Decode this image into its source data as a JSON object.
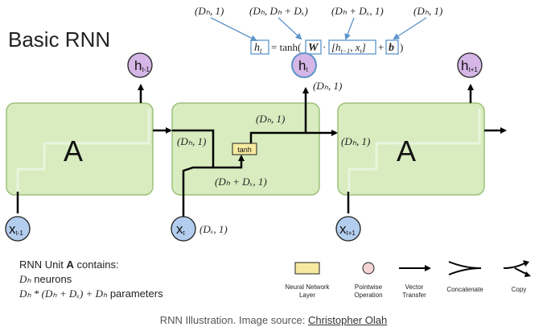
{
  "title": "Basic RNN",
  "equation": {
    "lhs": "h",
    "lhs_sub": "t",
    "eq": "= tanh(",
    "weight": "W",
    "dot": "·",
    "input_open": "[h",
    "input_sub": "t−1",
    "input_rest": ", x",
    "input_sub2": "t",
    "input_close": "]",
    "plus": "+",
    "bias": "b",
    "close": ")",
    "dims": {
      "h": "(Dₕ, 1)",
      "W": "(Dₕ, Dₕ + Dₓ)",
      "input": "(Dₕ + Dₓ, 1)",
      "b": "(Dₕ, 1)"
    }
  },
  "cells": {
    "left_label": "A",
    "right_label": "A",
    "center_layer": "tanh"
  },
  "nodes": {
    "h_prev": {
      "main": "h",
      "sub": "t-1"
    },
    "h_t": {
      "main": "h",
      "sub": "t"
    },
    "h_next": {
      "main": "h",
      "sub": "t+1"
    },
    "x_prev": {
      "main": "x",
      "sub": "t-1"
    },
    "x_t": {
      "main": "x",
      "sub": "t"
    },
    "x_next": {
      "main": "x",
      "sub": "t+1"
    }
  },
  "dim_labels": {
    "h_out": "(Dₕ, 1)",
    "tanh_out": "(Dₕ, 1)",
    "h_in": "(Dₕ, 1)",
    "concat": "(Dₕ + Dₓ, 1)",
    "x_in": "(Dₓ, 1)",
    "right_in": "(Dₕ, 1)"
  },
  "info": {
    "line1_pre": "RNN Unit ",
    "line1_bold": "A",
    "line1_post": " contains:",
    "line2_math": "Dₕ",
    "line2_text": " neurons",
    "line3_math": "Dₕ * (Dₕ + Dₓ) + Dₕ",
    "line3_text": " parameters"
  },
  "legend": {
    "nn_layer": "Neural Network Layer",
    "nn_layer_1": "Neural Network",
    "nn_layer_2": "Layer",
    "pointwise_1": "Pointwise",
    "pointwise_2": "Operation",
    "vector_1": "Vector",
    "vector_2": "Transfer",
    "concatenate": "Concatenate",
    "copy": "Copy"
  },
  "caption": {
    "text": "RNN Illustration. Image source: ",
    "link": "Christopher Olah"
  },
  "colors": {
    "cell_fill": "#d8ecbf",
    "cell_stroke": "#9dc07b",
    "node_blue": "#b3cdee",
    "node_purple": "#d5b6e6",
    "layer_yellow": "#f7eaa0",
    "pointwise": "#f4d4d4",
    "highlight": "#5d94c9"
  }
}
